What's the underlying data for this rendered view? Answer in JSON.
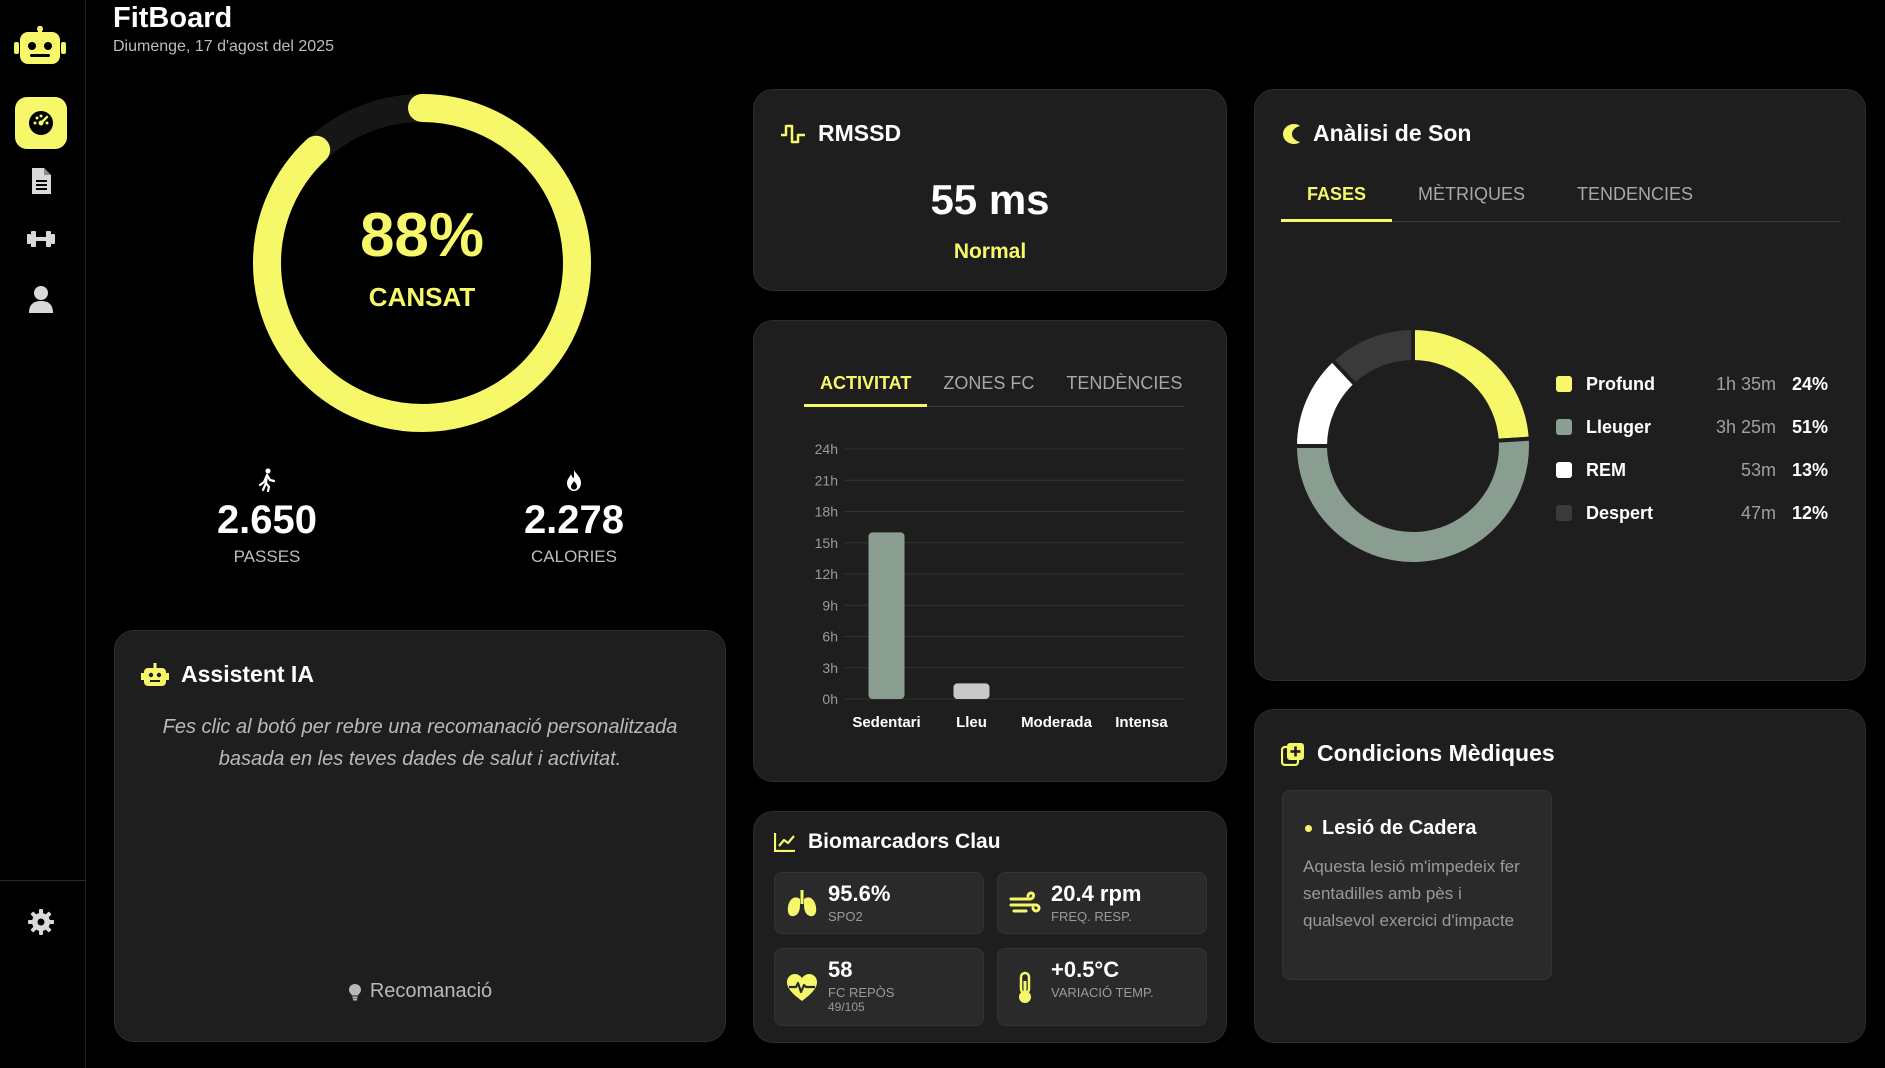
{
  "app": {
    "title": "FitBoard",
    "date": "Diumenge, 17 d'agost del 2025"
  },
  "colors": {
    "accent": "#f6f86a",
    "card": "#1e1e1e",
    "sage": "#8a9d91",
    "background": "#000000"
  },
  "sidebar": {
    "items": [
      {
        "icon": "dashboard-icon",
        "active": true
      },
      {
        "icon": "document-icon",
        "active": false
      },
      {
        "icon": "dumbbell-icon",
        "active": false
      },
      {
        "icon": "user-icon",
        "active": false
      }
    ],
    "settings_icon": "gear-icon"
  },
  "fatigue": {
    "value": "88%",
    "label": "CANSAT",
    "percent": 88
  },
  "steps": {
    "value": "2.650",
    "label": "PASSES"
  },
  "calories": {
    "value": "2.278",
    "label": "CALORIES"
  },
  "rmssd": {
    "title": "RMSSD",
    "value": "55 ms",
    "status": "Normal"
  },
  "activity": {
    "tabs": [
      "ACTIVITAT",
      "ZONES FC",
      "TENDÈNCIES"
    ],
    "active_tab": 0
  },
  "chart_data": {
    "type": "bar",
    "categories": [
      "Sedentari",
      "Lleu",
      "Moderada",
      "Intensa"
    ],
    "values": [
      16,
      1.5,
      0,
      0
    ],
    "unit": "h",
    "ylim": [
      0,
      24
    ],
    "yticks": [
      "0h",
      "3h",
      "6h",
      "9h",
      "12h",
      "15h",
      "18h",
      "21h",
      "24h"
    ],
    "bar_colors": [
      "#8a9d91",
      "#c9c9c9",
      "#8a9d91",
      "#8a9d91"
    ],
    "grid": true
  },
  "sleep": {
    "title": "Anàlisi de Son",
    "tabs": [
      "FASES",
      "MÈTRIQUES",
      "TENDENCIES"
    ],
    "active_tab": 0,
    "phases": [
      {
        "name": "Profund",
        "time": "1h 35m",
        "pct": "24%",
        "value": 24,
        "color": "#f6f86a"
      },
      {
        "name": "Lleuger",
        "time": "3h 25m",
        "pct": "51%",
        "value": 51,
        "color": "#8a9d91"
      },
      {
        "name": "REM",
        "time": "53m",
        "pct": "13%",
        "value": 13,
        "color": "#ffffff"
      },
      {
        "name": "Despert",
        "time": "47m",
        "pct": "12%",
        "value": 12,
        "color": "#3a3a3a"
      }
    ]
  },
  "assistant": {
    "title": "Assistent IA",
    "text": "Fes clic al botó per rebre una recomanació personalitzada basada en les teves dades de salut i activitat.",
    "button": "Recomanació"
  },
  "biomarkers": {
    "title": "Biomarcadors Clau",
    "items": [
      {
        "icon": "lungs-icon",
        "value": "95.6%",
        "label": "SPO2",
        "sub": ""
      },
      {
        "icon": "wind-icon",
        "value": "20.4 rpm",
        "label": "FREQ. RESP.",
        "sub": ""
      },
      {
        "icon": "heart-pulse-icon",
        "value": "58",
        "label": "FC REPÒS",
        "sub": "49/105"
      },
      {
        "icon": "thermometer-icon",
        "value": "+0.5°C",
        "label": "VARIACIÓ TEMP.",
        "sub": ""
      }
    ]
  },
  "medical": {
    "title": "Condicions Mèdiques",
    "condition": "Lesió de Cadera",
    "description": "Aquesta lesió m'impedeix fer sentadilles amb pès i qualsevol exercici d'impacte"
  }
}
